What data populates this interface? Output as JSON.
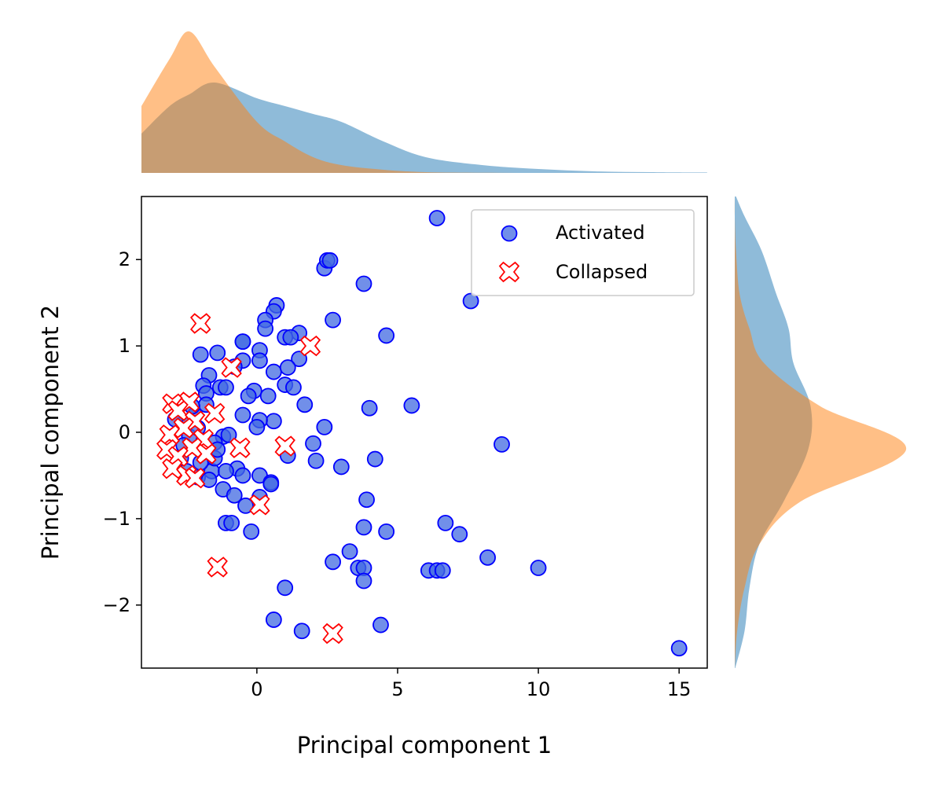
{
  "chart_data": {
    "type": "scatter",
    "xlabel": "Principal component 1",
    "ylabel": "Principal component 2",
    "xlim": [
      -4.1,
      16.0
    ],
    "ylim": [
      -2.73,
      2.73
    ],
    "xticks": [
      0,
      5,
      10,
      15
    ],
    "yticks": [
      -2,
      -1,
      0,
      1,
      2
    ],
    "legend_position": "top-right",
    "marginal_plots": "kde densities on top (PC1) and right (PC2)",
    "series": [
      {
        "name": "Activated",
        "marker": "circle",
        "color": "#4169e1",
        "edge_color": "#0000ff",
        "points": [
          [
            6.4,
            2.48
          ],
          [
            2.4,
            1.9
          ],
          [
            2.5,
            1.99
          ],
          [
            2.6,
            1.99
          ],
          [
            3.8,
            1.72
          ],
          [
            7.6,
            1.52
          ],
          [
            0.7,
            1.47
          ],
          [
            0.6,
            1.4
          ],
          [
            0.3,
            1.3
          ],
          [
            0.3,
            1.2
          ],
          [
            2.7,
            1.3
          ],
          [
            1.5,
            1.15
          ],
          [
            4.6,
            1.12
          ],
          [
            1.0,
            1.1
          ],
          [
            1.2,
            1.1
          ],
          [
            -0.5,
            1.05
          ],
          [
            -0.5,
            1.05
          ],
          [
            0.1,
            0.95
          ],
          [
            -2.0,
            0.9
          ],
          [
            -1.4,
            0.92
          ],
          [
            -0.5,
            0.83
          ],
          [
            0.1,
            0.83
          ],
          [
            1.5,
            0.85
          ],
          [
            -1.7,
            0.66
          ],
          [
            0.6,
            0.7
          ],
          [
            1.1,
            0.75
          ],
          [
            -0.8,
            0.76
          ],
          [
            1.0,
            0.55
          ],
          [
            1.3,
            0.52
          ],
          [
            -1.3,
            0.52
          ],
          [
            -1.1,
            0.52
          ],
          [
            -1.9,
            0.54
          ],
          [
            -0.1,
            0.48
          ],
          [
            -0.3,
            0.42
          ],
          [
            0.4,
            0.42
          ],
          [
            -1.8,
            0.45
          ],
          [
            1.7,
            0.32
          ],
          [
            5.5,
            0.31
          ],
          [
            4.0,
            0.28
          ],
          [
            -1.8,
            0.32
          ],
          [
            -0.5,
            0.2
          ],
          [
            0.6,
            0.13
          ],
          [
            0.1,
            0.14
          ],
          [
            0.0,
            0.06
          ],
          [
            2.4,
            0.06
          ],
          [
            -1.2,
            -0.05
          ],
          [
            -1.0,
            -0.03
          ],
          [
            -1.5,
            -0.12
          ],
          [
            2.0,
            -0.13
          ],
          [
            8.7,
            -0.14
          ],
          [
            1.1,
            -0.27
          ],
          [
            2.1,
            -0.33
          ],
          [
            4.2,
            -0.31
          ],
          [
            3.0,
            -0.4
          ],
          [
            -1.6,
            -0.45
          ],
          [
            -0.7,
            -0.42
          ],
          [
            -1.1,
            -0.45
          ],
          [
            -0.5,
            -0.5
          ],
          [
            -2.1,
            -0.52
          ],
          [
            0.1,
            -0.5
          ],
          [
            -1.7,
            -0.55
          ],
          [
            0.5,
            -0.58
          ],
          [
            0.5,
            -0.6
          ],
          [
            -1.2,
            -0.66
          ],
          [
            -0.8,
            -0.73
          ],
          [
            0.1,
            -0.75
          ],
          [
            -0.4,
            -0.85
          ],
          [
            3.9,
            -0.78
          ],
          [
            -1.1,
            -1.05
          ],
          [
            -0.9,
            -1.05
          ],
          [
            3.8,
            -1.1
          ],
          [
            6.7,
            -1.05
          ],
          [
            -0.2,
            -1.15
          ],
          [
            4.6,
            -1.15
          ],
          [
            7.2,
            -1.18
          ],
          [
            3.3,
            -1.38
          ],
          [
            8.2,
            -1.45
          ],
          [
            2.7,
            -1.5
          ],
          [
            3.6,
            -1.57
          ],
          [
            3.8,
            -1.57
          ],
          [
            6.1,
            -1.6
          ],
          [
            6.4,
            -1.6
          ],
          [
            6.6,
            -1.6
          ],
          [
            10.0,
            -1.57
          ],
          [
            3.8,
            -1.72
          ],
          [
            1.0,
            -1.8
          ],
          [
            0.6,
            -2.17
          ],
          [
            1.6,
            -2.3
          ],
          [
            4.4,
            -2.23
          ],
          [
            15.0,
            -2.5
          ],
          [
            -2.6,
            0.1
          ],
          [
            -2.4,
            -0.05
          ],
          [
            -2.2,
            0.2
          ],
          [
            -2.7,
            -0.3
          ],
          [
            -2.5,
            -0.45
          ],
          [
            -2.1,
            0.05
          ],
          [
            -2.0,
            -0.35
          ],
          [
            -1.5,
            -0.3
          ],
          [
            -2.3,
            0.3
          ],
          [
            -2.9,
            0.15
          ],
          [
            -1.4,
            -0.2
          ],
          [
            -2.6,
            -0.15
          ]
        ]
      },
      {
        "name": "Collapsed",
        "marker": "X",
        "color": "#ffffff",
        "edge_color": "#ff0000",
        "points": [
          [
            -2.0,
            1.26
          ],
          [
            1.9,
            1.0
          ],
          [
            -0.9,
            0.75
          ],
          [
            -2.4,
            0.35
          ],
          [
            -3.0,
            0.33
          ],
          [
            -2.8,
            0.25
          ],
          [
            -1.5,
            0.22
          ],
          [
            -2.2,
            0.13
          ],
          [
            -2.6,
            0.05
          ],
          [
            -3.1,
            -0.03
          ],
          [
            -1.9,
            -0.08
          ],
          [
            -2.3,
            -0.18
          ],
          [
            -3.2,
            -0.2
          ],
          [
            -2.8,
            -0.28
          ],
          [
            -1.8,
            -0.25
          ],
          [
            -0.6,
            -0.18
          ],
          [
            1.0,
            -0.16
          ],
          [
            -3.0,
            -0.42
          ],
          [
            -2.5,
            -0.5
          ],
          [
            -2.2,
            -0.53
          ],
          [
            0.1,
            -0.84
          ],
          [
            -1.4,
            -1.56
          ],
          [
            2.7,
            -2.33
          ]
        ]
      }
    ],
    "marginal_x": {
      "grid": [
        -4.1,
        -3.1,
        -2.4,
        -1.5,
        0.0,
        1.0,
        2.0,
        3.0,
        4.5,
        6.0,
        8.0,
        10.0,
        12.0,
        14.0,
        16.0
      ],
      "activated_density": [
        0.1,
        0.17,
        0.2,
        0.23,
        0.19,
        0.17,
        0.15,
        0.13,
        0.08,
        0.04,
        0.02,
        0.01,
        0.004,
        0.002,
        0.001
      ],
      "collapsed_density": [
        0.17,
        0.29,
        0.36,
        0.27,
        0.13,
        0.08,
        0.04,
        0.02,
        0.008,
        0.002,
        0.0005,
        0.0,
        0.0,
        0.0,
        0.0
      ]
    },
    "marginal_y": {
      "grid": [
        -2.73,
        -2.3,
        -1.8,
        -1.3,
        -0.8,
        -0.2,
        0.3,
        0.8,
        1.2,
        1.6,
        2.1,
        2.5,
        2.73
      ],
      "activated_density": [
        0.002,
        0.04,
        0.06,
        0.1,
        0.2,
        0.3,
        0.31,
        0.24,
        0.22,
        0.17,
        0.11,
        0.04,
        0.005
      ],
      "collapsed_density": [
        0.0,
        0.01,
        0.04,
        0.1,
        0.27,
        0.7,
        0.35,
        0.12,
        0.06,
        0.02,
        0.005,
        0.0,
        0.0
      ]
    }
  }
}
